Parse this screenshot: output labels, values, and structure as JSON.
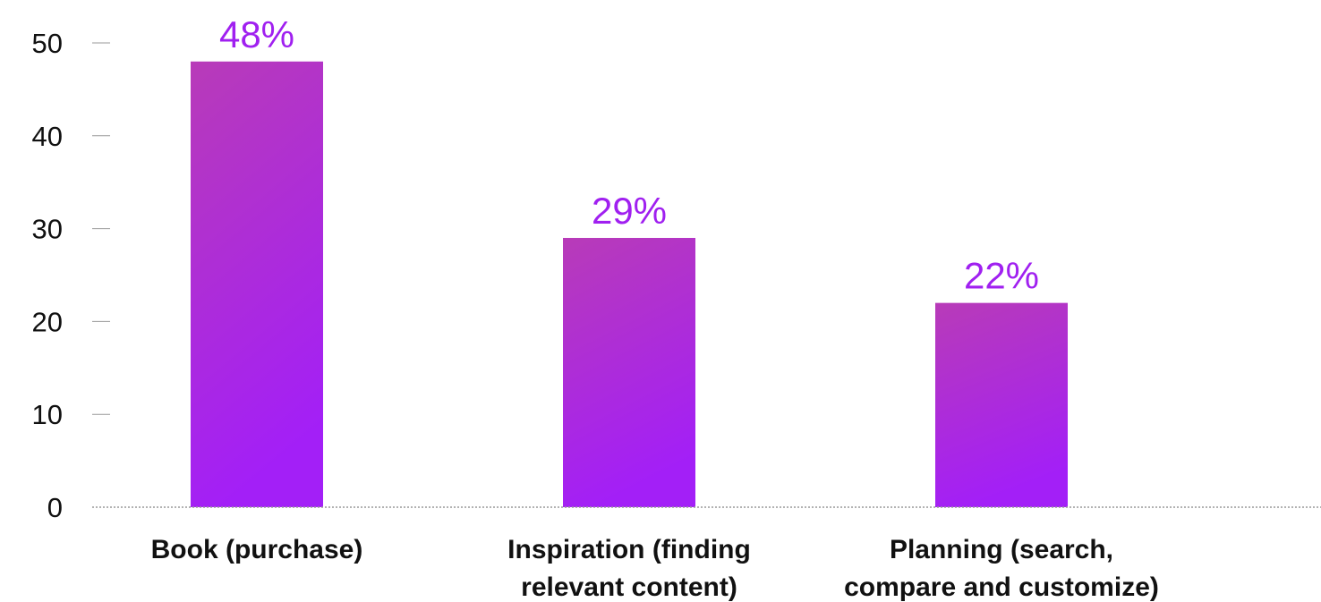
{
  "chart_data": {
    "type": "bar",
    "categories": [
      [
        "Book (purchase)"
      ],
      [
        "Inspiration (finding",
        "relevant content)"
      ],
      [
        "Planning (search,",
        "compare and customize)"
      ]
    ],
    "values": [
      48,
      29,
      22
    ],
    "value_labels": [
      "48%",
      "29%",
      "22%"
    ],
    "ylim": [
      0,
      50
    ],
    "y_ticks": [
      0,
      10,
      20,
      30,
      40,
      50
    ],
    "title": "",
    "xlabel": "",
    "ylabel": "",
    "grid": false,
    "legend": "none",
    "colors": {
      "bar_top": "#b83bb8",
      "bar_bottom": "#a31ff7",
      "value_label": "#a020f0",
      "axis": "#999999",
      "text": "#111111"
    }
  }
}
